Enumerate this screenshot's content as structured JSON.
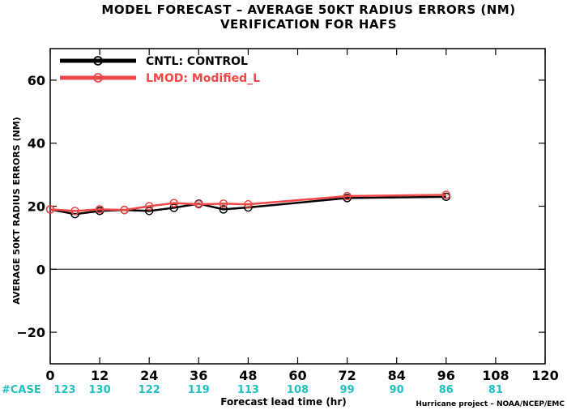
{
  "chart_data": {
    "type": "line",
    "title": "MODEL FORECAST – AVERAGE 50KT RADIUS ERRORS (NM)",
    "subtitle": "VERIFICATION FOR HAFS",
    "xlabel": "Forecast lead time (hr)",
    "ylabel": "AVERAGE 50KT RADIUS ERRORS (NM)",
    "xlim": [
      0,
      120
    ],
    "ylim": [
      -30,
      70
    ],
    "xticks": [
      0,
      12,
      24,
      36,
      48,
      60,
      72,
      84,
      96,
      108,
      120
    ],
    "yticks": [
      -20,
      0,
      20,
      40,
      60
    ],
    "zero_line": true,
    "legend_position": "top-left",
    "series": [
      {
        "name": "CNTL: CONTROL",
        "color": "#000000",
        "x": [
          0,
          6,
          12,
          18,
          24,
          30,
          36,
          42,
          48,
          72,
          96
        ],
        "y": [
          19,
          17.5,
          18.5,
          18.8,
          18.5,
          19.5,
          20.8,
          19,
          19.6,
          22.6,
          23
        ]
      },
      {
        "name": "LMOD: Modified_L",
        "color": "#f04848",
        "x": [
          0,
          6,
          12,
          18,
          24,
          30,
          36,
          42,
          48,
          72,
          96
        ],
        "y": [
          19,
          18.5,
          19,
          18.8,
          20,
          21,
          20.6,
          20.8,
          20.6,
          23.2,
          23.6
        ]
      }
    ],
    "case_label": "#CASE",
    "case_counts": [
      {
        "x": 0,
        "count": "123"
      },
      {
        "x": 12,
        "count": "130"
      },
      {
        "x": 24,
        "count": "122"
      },
      {
        "x": 36,
        "count": "119"
      },
      {
        "x": 48,
        "count": "113"
      },
      {
        "x": 60,
        "count": "108"
      },
      {
        "x": 72,
        "count": "99"
      },
      {
        "x": 84,
        "count": "90"
      },
      {
        "x": 96,
        "count": "86"
      },
      {
        "x": 108,
        "count": "81"
      }
    ],
    "credit": "Hurricane project – NOAA/NCEP/EMC"
  }
}
